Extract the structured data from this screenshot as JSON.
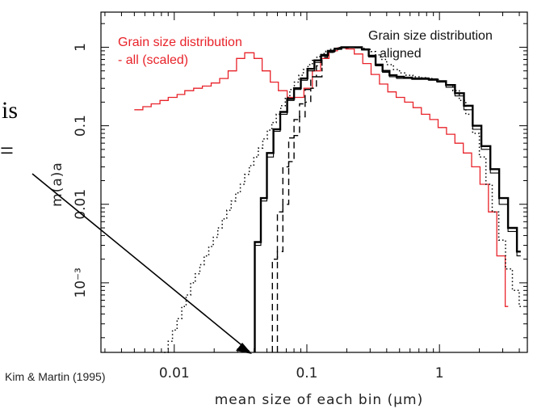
{
  "chart_data": {
    "type": "line",
    "title": "",
    "xlabel": "mean size of each bin (μm)",
    "ylabel": "m(a)a",
    "xscale": "log",
    "yscale": "log",
    "xlim": [
      0.0028,
      4.6
    ],
    "ylim": [
      0.00013,
      2.8
    ],
    "x_ticks": [
      {
        "value": 0.01,
        "label": "0.01"
      },
      {
        "value": 0.1,
        "label": "0.1"
      },
      {
        "value": 1,
        "label": "1"
      }
    ],
    "y_ticks": [
      {
        "value": 1,
        "label": "1"
      },
      {
        "value": 0.1,
        "label": "0.1"
      },
      {
        "value": 0.01,
        "label": "0.01"
      },
      {
        "value": 0.001,
        "label": "10⁻³"
      }
    ],
    "annotations": [
      {
        "text": "Grain size distribution",
        "color": "#e8232a"
      },
      {
        "text": "- all (scaled)",
        "color": "#e8232a"
      },
      {
        "text": "Grain size distribution",
        "color": "#111111"
      },
      {
        "text": "aligned",
        "color": "#111111"
      }
    ],
    "credit": "Kim & Martin (1995)",
    "fragments": [
      "is",
      "="
    ],
    "series": [
      {
        "color": "#e8232a",
        "dash": "solid",
        "width": 1.3,
        "x": [
          0.005,
          0.0058,
          0.0067,
          0.0078,
          0.009,
          0.0105,
          0.012,
          0.014,
          0.0163,
          0.019,
          0.022,
          0.0255,
          0.0295,
          0.034,
          0.04,
          0.046,
          0.053,
          0.061,
          0.071,
          0.082,
          0.095,
          0.11,
          0.127,
          0.147,
          0.17,
          0.197,
          0.228,
          0.264,
          0.305,
          0.353,
          0.408,
          0.472,
          0.546,
          0.632,
          0.731,
          0.845,
          0.977,
          1.13,
          1.307,
          1.512,
          1.749,
          2.023,
          2.34,
          2.707,
          3.131,
          3.3
        ],
        "y": [
          0.16,
          0.175,
          0.19,
          0.21,
          0.23,
          0.25,
          0.28,
          0.3,
          0.32,
          0.35,
          0.4,
          0.5,
          0.72,
          0.85,
          0.72,
          0.5,
          0.36,
          0.28,
          0.23,
          0.23,
          0.3,
          0.5,
          0.72,
          0.9,
          0.98,
          0.95,
          0.82,
          0.62,
          0.45,
          0.34,
          0.27,
          0.23,
          0.2,
          0.17,
          0.14,
          0.12,
          0.095,
          0.078,
          0.06,
          0.045,
          0.03,
          0.018,
          0.008,
          0.0022,
          0.0005,
          0.0005
        ]
      },
      {
        "color": "#000000",
        "dash": "solid",
        "width": 2.4,
        "x": [
          0.0405,
          0.0405,
          0.045,
          0.05,
          0.056,
          0.063,
          0.071,
          0.08,
          0.09,
          0.101,
          0.114,
          0.128,
          0.144,
          0.162,
          0.182,
          0.205,
          0.231,
          0.26,
          0.293,
          0.33,
          0.372,
          0.42,
          0.475,
          0.54,
          0.62,
          0.72,
          0.83,
          0.96,
          1.12,
          1.31,
          1.53,
          1.78,
          2.07,
          2.42,
          2.82,
          3.29,
          3.84,
          4.1
        ],
        "y": [
          0.00013,
          0.0033,
          0.012,
          0.045,
          0.09,
          0.15,
          0.22,
          0.3,
          0.4,
          0.53,
          0.68,
          0.8,
          0.9,
          0.96,
          1.0,
          1.0,
          1.0,
          0.94,
          0.78,
          0.6,
          0.5,
          0.44,
          0.42,
          0.41,
          0.4,
          0.4,
          0.39,
          0.37,
          0.33,
          0.26,
          0.18,
          0.1,
          0.055,
          0.028,
          0.012,
          0.005,
          0.0025,
          0.0025
        ]
      },
      {
        "color": "#000000",
        "dash": "solid",
        "width": 1.1,
        "x": [
          0.0405,
          0.0405,
          0.045,
          0.05,
          0.056,
          0.063,
          0.071,
          0.08,
          0.09,
          0.101,
          0.114,
          0.128,
          0.144,
          0.162,
          0.182,
          0.205,
          0.231,
          0.26,
          0.293,
          0.33,
          0.372,
          0.42,
          0.475,
          0.54,
          0.62,
          0.72,
          0.83,
          0.96,
          1.12,
          1.31,
          1.53,
          1.78,
          2.07,
          2.42,
          2.82,
          3.29,
          3.84,
          4.1
        ],
        "y": [
          0.00013,
          0.003,
          0.011,
          0.04,
          0.085,
          0.14,
          0.21,
          0.29,
          0.38,
          0.5,
          0.64,
          0.77,
          0.87,
          0.94,
          0.98,
          0.99,
          0.98,
          0.92,
          0.75,
          0.58,
          0.48,
          0.42,
          0.4,
          0.4,
          0.39,
          0.39,
          0.38,
          0.36,
          0.31,
          0.24,
          0.16,
          0.09,
          0.05,
          0.025,
          0.01,
          0.0045,
          0.0022,
          0.0022
        ]
      },
      {
        "color": "#000000",
        "dash": "dashed",
        "width": 1.4,
        "x": [
          0.055,
          0.055,
          0.06,
          0.066,
          0.073,
          0.08,
          0.088,
          0.097,
          0.107,
          0.118,
          0.13,
          0.143,
          0.158,
          0.174,
          0.192,
          0.21,
          0.23
        ],
        "y": [
          0.00013,
          0.002,
          0.008,
          0.03,
          0.07,
          0.12,
          0.19,
          0.29,
          0.42,
          0.58,
          0.74,
          0.86,
          0.94,
          0.98,
          1.0,
          1.0,
          1.0
        ]
      },
      {
        "color": "#000000",
        "dash": "dashed",
        "width": 1.4,
        "x": [
          0.06,
          0.06,
          0.066,
          0.073,
          0.08,
          0.088,
          0.097,
          0.107,
          0.118,
          0.13
        ],
        "y": [
          0.00013,
          0.0025,
          0.01,
          0.035,
          0.075,
          0.13,
          0.2,
          0.3,
          0.42,
          0.55
        ]
      },
      {
        "color": "#000000",
        "dash": "dotted",
        "width": 1.5,
        "x": [
          0.0084,
          0.009,
          0.0097,
          0.0105,
          0.0114,
          0.0123,
          0.0133,
          0.0144,
          0.0156,
          0.0168,
          0.0182,
          0.0197,
          0.0213,
          0.023,
          0.0249,
          0.0269,
          0.0291,
          0.0315,
          0.034,
          0.0368,
          0.0398,
          0.043,
          0.0465,
          0.0503,
          0.0544,
          0.0588,
          0.0636,
          0.0688,
          0.0744,
          0.0805,
          0.087,
          0.094,
          0.102,
          0.11,
          0.119,
          0.129,
          0.139,
          0.151,
          0.163,
          0.176,
          0.19,
          0.206,
          0.222,
          0.24,
          0.26,
          0.281,
          0.304,
          0.33,
          0.36,
          0.4,
          0.45,
          0.5,
          0.56,
          0.63,
          0.71,
          0.8,
          0.9,
          1.0,
          1.12,
          1.26,
          1.41,
          1.58,
          1.78,
          2.0,
          2.24,
          2.5,
          2.8,
          3.15,
          3.55,
          3.99,
          4.2
        ],
        "y": [
          0.00013,
          0.00018,
          0.00025,
          0.00035,
          0.0005,
          0.0007,
          0.001,
          0.0013,
          0.0017,
          0.0022,
          0.0029,
          0.0038,
          0.005,
          0.0065,
          0.0084,
          0.011,
          0.014,
          0.018,
          0.024,
          0.031,
          0.04,
          0.052,
          0.068,
          0.088,
          0.11,
          0.14,
          0.18,
          0.23,
          0.29,
          0.36,
          0.44,
          0.52,
          0.6,
          0.68,
          0.76,
          0.83,
          0.89,
          0.94,
          0.97,
          0.99,
          1.0,
          1.0,
          1.0,
          0.99,
          0.97,
          0.94,
          0.88,
          0.8,
          0.7,
          0.6,
          0.52,
          0.47,
          0.44,
          0.42,
          0.41,
          0.4,
          0.39,
          0.37,
          0.33,
          0.28,
          0.21,
          0.14,
          0.08,
          0.04,
          0.018,
          0.008,
          0.0035,
          0.0015,
          0.0008,
          0.0005,
          0.0005
        ]
      }
    ]
  }
}
